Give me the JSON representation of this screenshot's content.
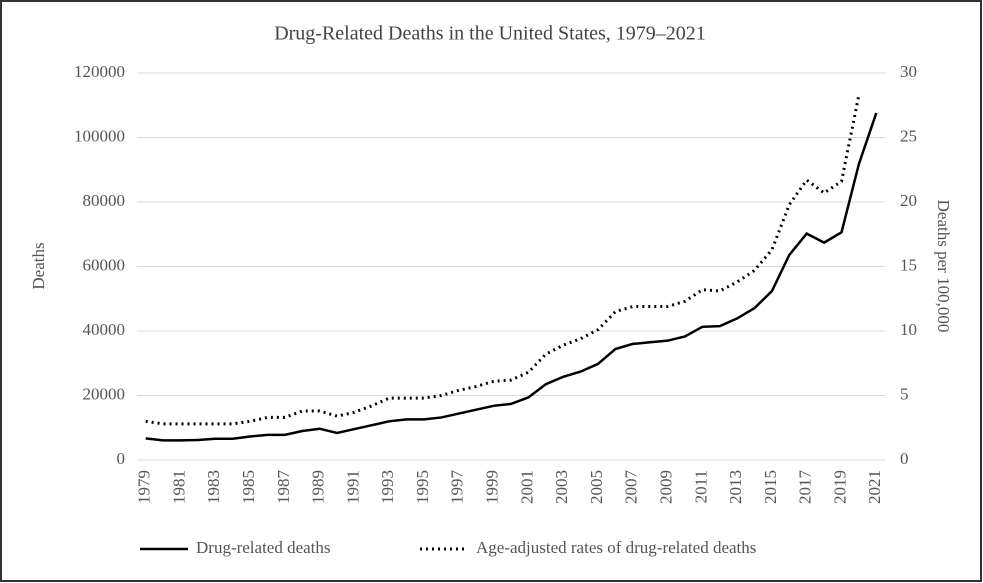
{
  "chart_data": {
    "type": "line",
    "title": "Drug-Related Deaths  in the United States, 1979–2021",
    "y_label": "Deaths",
    "y2_label": "Deaths per 100,000",
    "x": [
      1979,
      1980,
      1981,
      1982,
      1983,
      1984,
      1985,
      1986,
      1987,
      1988,
      1989,
      1990,
      1991,
      1992,
      1993,
      1994,
      1995,
      1996,
      1997,
      1998,
      1999,
      2000,
      2001,
      2002,
      2003,
      2004,
      2005,
      2006,
      2007,
      2008,
      2009,
      2010,
      2011,
      2012,
      2013,
      2014,
      2015,
      2016,
      2017,
      2018,
      2019,
      2020,
      2021
    ],
    "xticks": [
      1979,
      1981,
      1983,
      1985,
      1987,
      1989,
      1991,
      1993,
      1995,
      1997,
      1999,
      2001,
      2003,
      2005,
      2007,
      2009,
      2011,
      2013,
      2015,
      2017,
      2019,
      2021
    ],
    "ylim": [
      0,
      120000
    ],
    "yticks": [
      0,
      20000,
      40000,
      60000,
      80000,
      100000,
      120000
    ],
    "y2lim": [
      0,
      30
    ],
    "y2ticks": [
      0,
      5,
      10,
      15,
      20,
      25,
      30
    ],
    "grid": true,
    "series": [
      {
        "name": "Drug-related deaths",
        "color": "#000000",
        "style": "solid",
        "values": [
          6700,
          6100,
          6100,
          6200,
          6600,
          6600,
          7300,
          7800,
          7800,
          9000,
          9700,
          8400,
          9600,
          10800,
          12000,
          12600,
          12600,
          13200,
          14400,
          15600,
          16800,
          17400,
          19400,
          23500,
          25800,
          27400,
          29800,
          34400,
          36000,
          36500,
          37000,
          38300,
          41300,
          41500,
          43900,
          47100,
          52400,
          63600,
          70200,
          67400,
          70600,
          91800,
          107600
        ]
      },
      {
        "name": "Age-adjusted rates of drug-related deaths",
        "color": "#000000",
        "style": "dotted",
        "axis": "y2",
        "values": [
          3.0,
          2.8,
          2.8,
          2.8,
          2.8,
          2.8,
          3.0,
          3.3,
          3.3,
          3.8,
          3.8,
          3.4,
          3.7,
          4.2,
          4.8,
          4.8,
          4.8,
          5.0,
          5.4,
          5.7,
          6.1,
          6.2,
          6.8,
          8.2,
          8.9,
          9.4,
          10.1,
          11.5,
          11.9,
          11.9,
          11.9,
          12.3,
          13.2,
          13.1,
          13.8,
          14.7,
          16.3,
          19.8,
          21.7,
          20.7,
          21.6,
          28.3,
          null
        ]
      }
    ]
  }
}
